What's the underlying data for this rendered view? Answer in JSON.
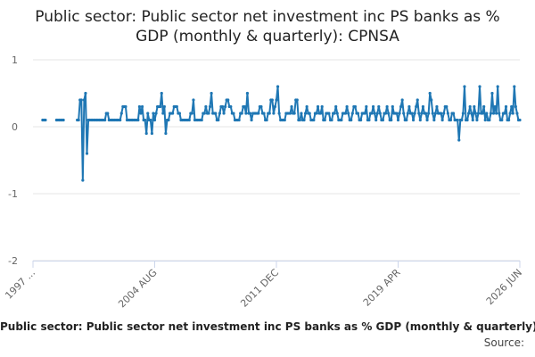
{
  "chart_data": {
    "type": "line",
    "title": "Public sector: Public sector net investment inc PS banks as % GDP (monthly & quarterly): CPNSA",
    "caption": "Public sector: Public sector net investment inc PS banks as % GDP (monthly & quarterly): CPNSA",
    "source": "Source:",
    "categories": [
      "1997 ...",
      null,
      null,
      null,
      null,
      null,
      null,
      null,
      null,
      null,
      null,
      null,
      null,
      null,
      null,
      null,
      null,
      null,
      null,
      null,
      null,
      null,
      null,
      null,
      null,
      null,
      null,
      null,
      null,
      null,
      null,
      null,
      null,
      null,
      null,
      null,
      null,
      null,
      null,
      null,
      null,
      null,
      null,
      null,
      null,
      null,
      null,
      null,
      null,
      null,
      null,
      null,
      null,
      null,
      null,
      null,
      null,
      null,
      null,
      null,
      null,
      null,
      null,
      null,
      null,
      null,
      null,
      null,
      null,
      null,
      null,
      null,
      null,
      null,
      null,
      null,
      null,
      null,
      null,
      null,
      null,
      null,
      null,
      null,
      null,
      null,
      null,
      null,
      "2004 AUG",
      null,
      null,
      null,
      null,
      null,
      null,
      null,
      null,
      null,
      null,
      null,
      null,
      null,
      null,
      null,
      null,
      null,
      null,
      null,
      null,
      null,
      null,
      null,
      null,
      null,
      null,
      null,
      null,
      null,
      null,
      null,
      null,
      null,
      null,
      null,
      null,
      null,
      null,
      null,
      null,
      null,
      null,
      null,
      null,
      null,
      null,
      null,
      null,
      null,
      null,
      null,
      null,
      null,
      null,
      null,
      null,
      null,
      null,
      null,
      null,
      null,
      null,
      null,
      null,
      null,
      null,
      null,
      null,
      null,
      null,
      null,
      null,
      null,
      null,
      null,
      null,
      null,
      null,
      null,
      null,
      null,
      null,
      null,
      null,
      null,
      null,
      null,
      "2011 DEC",
      null,
      null,
      null,
      null,
      null,
      null,
      null,
      null,
      null,
      null,
      null,
      null,
      null,
      null,
      null,
      null,
      null,
      null,
      null,
      null,
      null,
      null,
      null,
      null,
      null,
      null,
      null,
      null,
      null,
      null,
      null,
      null,
      null,
      null,
      null,
      null,
      null,
      null,
      null,
      null,
      null,
      null,
      null,
      null,
      null,
      null,
      null,
      null,
      null,
      null,
      null,
      null,
      null,
      null,
      null,
      null,
      null,
      null,
      null,
      null,
      null,
      null,
      null,
      null,
      null,
      null,
      null,
      null,
      null,
      null,
      null,
      null,
      null,
      null,
      null,
      null,
      null,
      null,
      null,
      null,
      null,
      null,
      null,
      null,
      null,
      null,
      null,
      "2019 APR",
      null,
      null,
      null,
      null,
      null,
      null,
      null,
      null,
      null,
      null,
      null,
      null,
      null,
      null,
      null,
      null,
      null,
      null,
      null,
      null,
      null,
      null,
      null,
      null,
      null,
      null,
      null,
      null,
      null,
      null,
      null,
      null,
      null,
      null,
      null,
      null,
      null,
      null,
      null,
      null,
      null,
      null,
      null,
      null,
      null,
      null,
      null,
      null,
      null,
      null,
      null,
      null,
      null,
      null,
      null,
      null,
      null,
      null,
      null,
      null,
      null,
      null,
      null,
      null,
      null,
      null,
      null,
      null,
      null,
      null,
      null,
      null,
      null,
      null,
      null,
      null,
      null,
      null,
      null,
      null,
      null,
      null,
      null,
      null,
      null,
      null,
      null,
      "2026 JUN"
    ],
    "values": [
      null,
      null,
      null,
      null,
      null,
      null,
      null,
      0.1,
      0.1,
      0.1,
      null,
      null,
      null,
      null,
      null,
      null,
      null,
      0.1,
      0.1,
      0.1,
      0.1,
      0.1,
      0.1,
      null,
      null,
      null,
      null,
      null,
      null,
      null,
      null,
      null,
      0.1,
      0.1,
      0.4,
      0.4,
      -0.8,
      0.4,
      0.5,
      -0.4,
      0.1,
      0.1,
      0.1,
      0.1,
      0.1,
      0.1,
      0.1,
      0.1,
      0.1,
      0.1,
      0.1,
      0.1,
      0.1,
      0.2,
      0.2,
      0.1,
      0.1,
      0.1,
      0.1,
      0.1,
      0.1,
      0.1,
      0.1,
      0.1,
      0.2,
      0.3,
      0.3,
      0.3,
      0.1,
      0.1,
      0.1,
      0.1,
      0.1,
      0.1,
      0.1,
      0.1,
      0.1,
      0.3,
      0.2,
      0.3,
      0.1,
      0.1,
      -0.1,
      0.2,
      0.1,
      0.1,
      -0.1,
      0.2,
      0.1,
      0.2,
      0.3,
      0.3,
      0.3,
      0.5,
      0.2,
      0.3,
      -0.1,
      0.1,
      0.1,
      0.2,
      0.2,
      0.2,
      0.3,
      0.3,
      0.3,
      0.2,
      0.2,
      0.1,
      0.1,
      0.1,
      0.1,
      0.1,
      0.1,
      0.1,
      0.2,
      0.2,
      0.4,
      0.1,
      0.1,
      0.1,
      0.1,
      0.1,
      0.1,
      0.2,
      0.2,
      0.3,
      0.2,
      0.2,
      0.3,
      0.5,
      0.2,
      0.2,
      0.2,
      0.1,
      0.1,
      0.2,
      0.3,
      0.3,
      0.2,
      0.3,
      0.4,
      0.4,
      0.3,
      0.3,
      0.2,
      0.2,
      0.1,
      0.1,
      0.1,
      0.1,
      0.2,
      0.2,
      0.3,
      0.3,
      0.2,
      0.5,
      0.2,
      0.2,
      0.1,
      0.2,
      0.2,
      0.2,
      0.2,
      0.2,
      0.3,
      0.3,
      0.2,
      0.2,
      0.1,
      0.1,
      0.2,
      0.2,
      0.4,
      0.4,
      0.2,
      0.3,
      0.4,
      0.6,
      0.2,
      0.1,
      0.1,
      0.1,
      0.1,
      0.2,
      0.2,
      0.2,
      0.2,
      0.3,
      0.2,
      0.2,
      0.4,
      0.4,
      0.1,
      0.1,
      0.2,
      0.1,
      0.1,
      0.2,
      0.3,
      0.2,
      0.2,
      0.1,
      0.1,
      0.1,
      0.2,
      0.2,
      0.3,
      0.2,
      0.2,
      0.3,
      0.1,
      0.1,
      0.2,
      0.2,
      0.2,
      0.1,
      0.1,
      0.2,
      0.2,
      0.3,
      0.2,
      0.1,
      0.1,
      0.1,
      0.2,
      0.2,
      0.2,
      0.3,
      0.2,
      0.1,
      0.1,
      0.2,
      0.3,
      0.3,
      0.2,
      0.2,
      0.1,
      0.1,
      0.2,
      0.2,
      0.2,
      0.3,
      0.1,
      0.1,
      0.2,
      0.2,
      0.3,
      0.2,
      0.1,
      0.2,
      0.3,
      0.2,
      0.1,
      0.1,
      0.2,
      0.2,
      0.3,
      0.2,
      0.1,
      0.1,
      0.3,
      0.2,
      0.2,
      0.2,
      0.1,
      0.2,
      0.3,
      0.4,
      0.2,
      0.1,
      0.1,
      0.2,
      0.3,
      0.2,
      0.2,
      0.1,
      0.2,
      0.3,
      0.4,
      0.2,
      0.1,
      0.2,
      0.3,
      0.2,
      0.2,
      0.1,
      0.2,
      0.5,
      0.4,
      0.2,
      0.1,
      0.2,
      0.3,
      0.2,
      0.2,
      0.2,
      0.1,
      0.2,
      0.3,
      0.3,
      0.2,
      0.1,
      0.1,
      0.2,
      0.2,
      0.1,
      0.1,
      0.1,
      -0.2,
      0.1,
      0.1,
      0.2,
      0.6,
      0.1,
      0.1,
      0.2,
      0.3,
      0.2,
      0.1,
      0.3,
      0.2,
      0.1,
      0.2,
      0.6,
      0.2,
      0.2,
      0.3,
      0.1,
      0.2,
      0.1,
      0.1,
      0.2,
      0.5,
      0.2,
      0.3,
      0.2,
      0.6,
      0.2,
      0.1,
      0.1,
      0.2,
      0.2,
      0.3,
      0.1,
      0.1,
      0.2,
      0.3,
      0.2,
      0.6,
      0.3,
      0.2,
      0.1,
      0.1
    ],
    "color": "#1f77b4",
    "ylim": [
      -2,
      1
    ],
    "yticks": [
      -2,
      -1,
      0,
      1
    ],
    "grid": true
  }
}
